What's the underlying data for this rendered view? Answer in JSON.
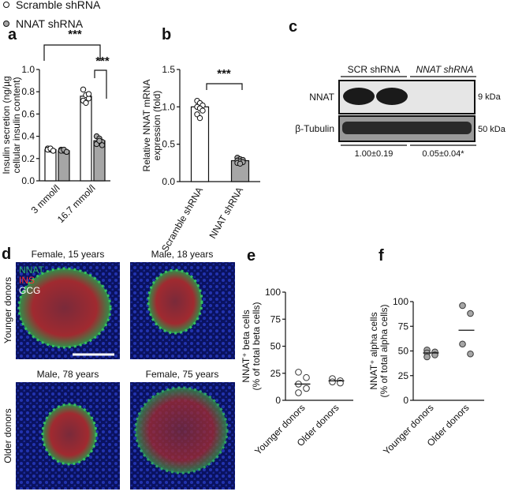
{
  "chart_data": [
    {
      "type": "bar",
      "panel": "a",
      "ylabel": [
        "Insulin secretion (ng/µg",
        "cellular insulin content)"
      ],
      "categories": [
        "3 mmol/l",
        "16.7 mmol/l"
      ],
      "series": [
        {
          "name": "Scramble shRNA",
          "color": "#ffffff",
          "values": [
            0.28,
            0.76
          ],
          "points": [
            [
              0.29,
              0.28,
              0.27,
              0.28,
              0.29,
              0.27
            ],
            [
              0.82,
              0.77,
              0.74,
              0.72,
              0.7,
              0.78
            ]
          ]
        },
        {
          "name": "NNAT shRNA",
          "color": "#a6a6a6",
          "values": [
            0.27,
            0.36
          ],
          "points": [
            [
              0.28,
              0.27,
              0.26,
              0.27,
              0.28,
              0.26
            ],
            [
              0.4,
              0.38,
              0.35,
              0.33,
              0.36,
              0.32
            ]
          ]
        }
      ],
      "ylim": [
        0,
        1
      ],
      "yticks": [
        {
          "value": 0,
          "label": "0.0"
        },
        {
          "value": 0.2,
          "label": "0.2"
        },
        {
          "value": 0.4,
          "label": "0.4"
        },
        {
          "value": 0.6,
          "label": "0.6"
        },
        {
          "value": 0.8,
          "label": "0.8"
        },
        {
          "value": 1,
          "label": "1.0"
        }
      ],
      "annotations": [
        "***",
        "***"
      ]
    },
    {
      "type": "bar",
      "panel": "b",
      "ylabel": [
        "Relative NNAT mRNA",
        "expression (fold)"
      ],
      "categories": [
        "Scramble shRNA",
        "NNAT shRNA"
      ],
      "colors": [
        "#ffffff",
        "#a6a6a6"
      ],
      "values": [
        1.0,
        0.28
      ],
      "points": [
        [
          1.08,
          1.05,
          1.02,
          1.0,
          0.98,
          0.95,
          0.9,
          0.85
        ],
        [
          0.32,
          0.3,
          0.29,
          0.28,
          0.27,
          0.26,
          0.25,
          0.24
        ]
      ],
      "ylim": [
        0,
        1.5
      ],
      "yticks": [
        {
          "value": 0,
          "label": "0.0"
        },
        {
          "value": 0.5,
          "label": "0.5"
        },
        {
          "value": 1,
          "label": "1.0"
        },
        {
          "value": 1.5,
          "label": "1.5"
        }
      ],
      "annotations": [
        "***"
      ]
    },
    {
      "type": "strip",
      "panel": "e",
      "ylabel": [
        "NNAT⁺ beta cells",
        "(% of total beta cells)"
      ],
      "categories": [
        "Younger donors",
        "Older donors"
      ],
      "color": "#ffffff",
      "points": [
        [
          26,
          21,
          15,
          11,
          7
        ],
        [
          20,
          18,
          17,
          16
        ]
      ],
      "means": [
        15,
        18
      ],
      "ylim": [
        0,
        100
      ],
      "yticks": [
        0,
        25,
        50,
        75,
        100
      ]
    },
    {
      "type": "strip",
      "panel": "f",
      "ylabel": [
        "NNAT⁺ alpha cells",
        "(% of total alpha cells)"
      ],
      "categories": [
        "Younger donors",
        "Older donors"
      ],
      "color": "#a6a6a6",
      "points": [
        [
          51,
          49,
          48,
          46,
          44
        ],
        [
          96,
          88,
          57,
          47
        ]
      ],
      "means": [
        48,
        71
      ],
      "ylim": [
        0,
        100
      ],
      "yticks": [
        0,
        25,
        50,
        75,
        100
      ]
    }
  ],
  "blot": {
    "panel": "c",
    "groups": [
      "SCR shRNA",
      "NNAT shRNA"
    ],
    "rows": [
      "NNAT",
      "β-Tubulin"
    ],
    "sizes": [
      "9 kDa",
      "50 kDa"
    ],
    "quant": [
      "1.00±0.19",
      "0.05±0.04*"
    ]
  },
  "images": {
    "panel": "d",
    "stains": [
      "NNAT",
      "INS",
      "GCG"
    ],
    "rows": [
      "Younger donors",
      "Older donors"
    ],
    "titles": [
      "Female, 15 years",
      "Male, 18 years",
      "Male, 78 years",
      "Female, 75 years"
    ]
  }
}
